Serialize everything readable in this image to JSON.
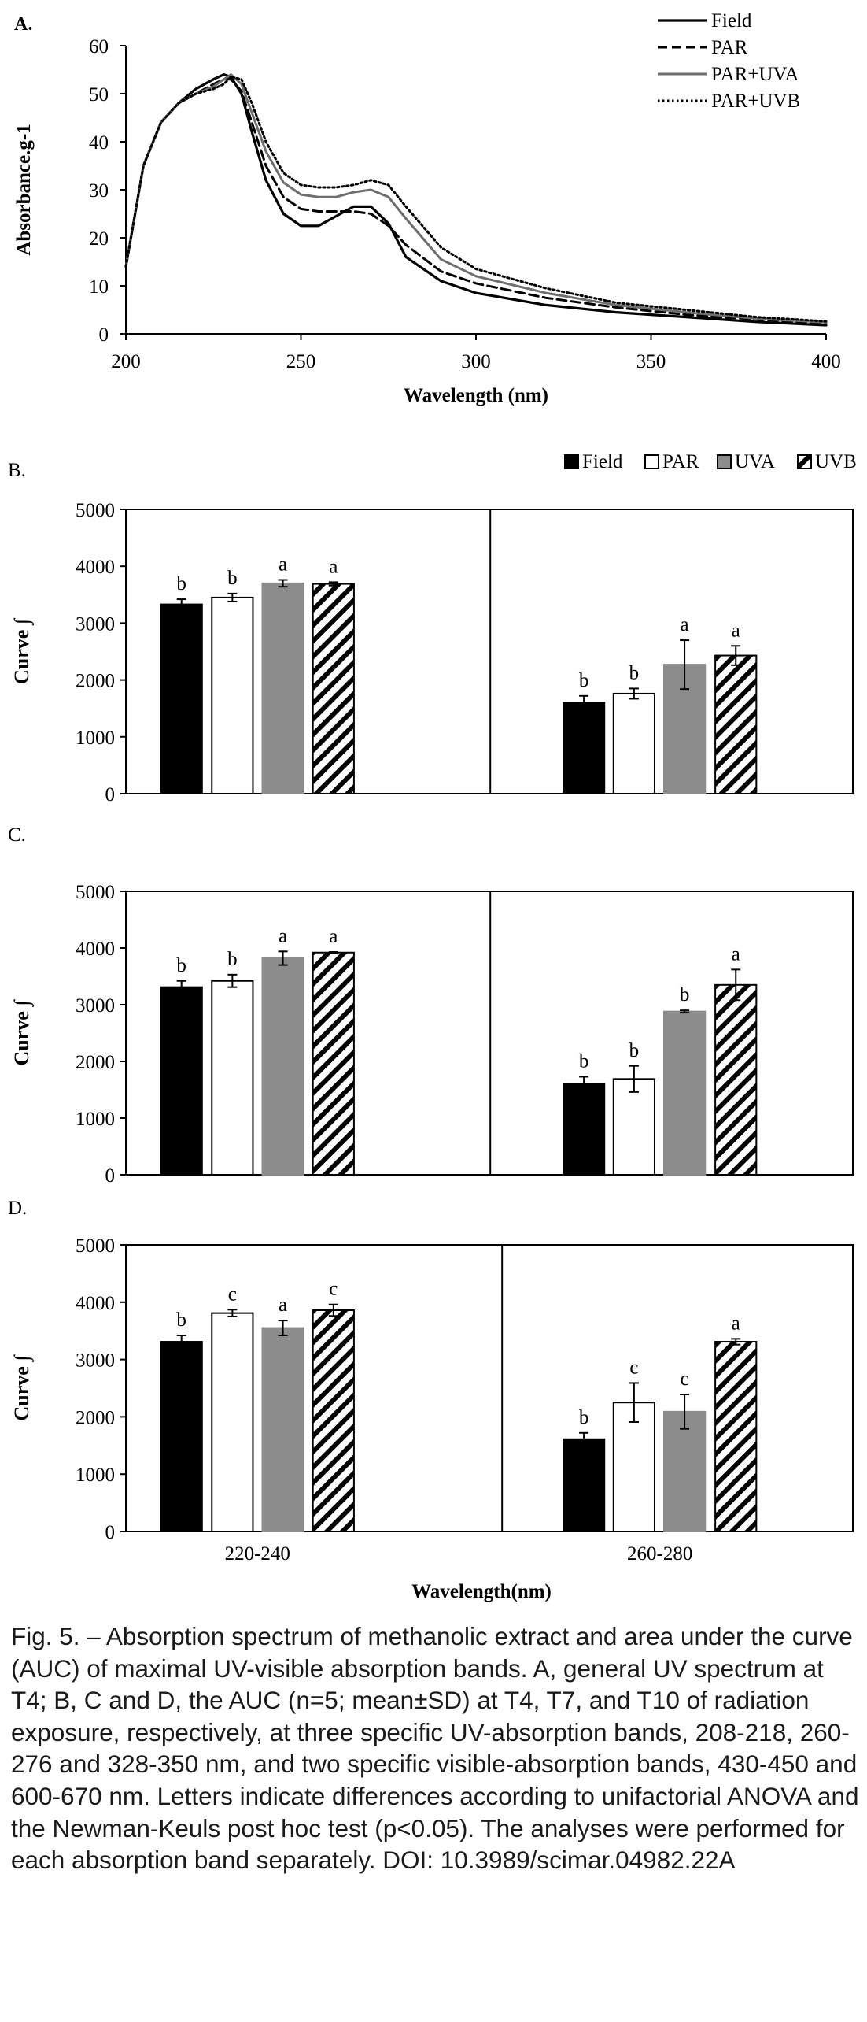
{
  "figure": {
    "caption": "Fig. 5. – Absorption spectrum of methanolic extract and area under the curve (AUC) of maximal UV-visible absorption bands. A, general UV spectrum at T4; B, C and D, the AUC (n=5; mean±SD) at T4, T7, and T10 of radiation exposure, respectively, at three specific UV-absorption bands, 208-218, 260-276 and 328-350 nm, and two specific visible-absorption bands, 430-450 and 600-670 nm. Letters indicate differences according to unifactorial ANOVA and the Newman-Keuls post hoc test (p<0.05). The analyses were performed for each absorption band separately. DOI: 10.3989/scimar.04982.22A"
  },
  "colors": {
    "field": "#000000",
    "par": "#ffffff",
    "uva": "#8c8c8c",
    "uvb_hatch": "#000000",
    "axis": "#000000"
  },
  "chart_data": [
    {
      "panel": "A.",
      "type": "line",
      "xlabel": "Wavelength (nm)",
      "ylabel": "Absorbance.g-1",
      "xlim": [
        200,
        400
      ],
      "ylim": [
        0,
        60
      ],
      "xticks": [
        200,
        250,
        300,
        350,
        400
      ],
      "yticks": [
        0,
        10,
        20,
        30,
        40,
        50,
        60
      ],
      "legend_position": "top-right",
      "series": [
        {
          "name": "Field",
          "style": "solid-black",
          "x": [
            200,
            205,
            210,
            215,
            220,
            225,
            228,
            230,
            233,
            236,
            240,
            245,
            250,
            255,
            260,
            265,
            270,
            275,
            280,
            290,
            300,
            320,
            340,
            360,
            380,
            400
          ],
          "y": [
            14,
            35,
            44,
            48,
            51,
            53,
            54,
            53.5,
            50,
            42,
            32,
            25,
            22.5,
            22.5,
            24.5,
            26.5,
            26.5,
            23,
            16,
            11,
            8.5,
            6,
            4.5,
            3.5,
            2.5,
            1.8
          ]
        },
        {
          "name": "PAR",
          "style": "dashed-black",
          "x": [
            200,
            205,
            210,
            215,
            220,
            225,
            228,
            230,
            233,
            236,
            240,
            245,
            250,
            255,
            260,
            265,
            270,
            275,
            280,
            290,
            300,
            320,
            340,
            360,
            380,
            400
          ],
          "y": [
            14,
            35,
            44,
            48,
            50,
            52,
            53,
            53,
            50.5,
            44,
            35,
            28.5,
            26,
            25.5,
            25.5,
            25.5,
            25,
            22.5,
            18.5,
            13,
            10.5,
            7.5,
            5.5,
            4,
            3,
            2.2
          ]
        },
        {
          "name": "PAR+UVA",
          "style": "solid-gray",
          "x": [
            200,
            205,
            210,
            215,
            220,
            225,
            228,
            230,
            233,
            236,
            240,
            245,
            250,
            255,
            260,
            265,
            270,
            275,
            280,
            290,
            300,
            320,
            340,
            360,
            380,
            400
          ],
          "y": [
            14,
            35,
            44,
            48,
            50,
            51.5,
            53,
            54,
            52,
            46,
            38,
            31.5,
            29,
            28.5,
            28.5,
            29.5,
            30,
            28.5,
            24,
            15.5,
            12,
            8.5,
            6,
            4.5,
            3.2,
            2.4
          ]
        },
        {
          "name": "PAR+UVB",
          "style": "dotted-black",
          "x": [
            200,
            205,
            210,
            215,
            220,
            225,
            228,
            230,
            233,
            236,
            240,
            245,
            250,
            255,
            260,
            265,
            270,
            275,
            280,
            290,
            300,
            320,
            340,
            360,
            380,
            400
          ],
          "y": [
            14,
            35,
            44,
            48,
            50,
            51,
            52,
            53.5,
            53,
            48,
            40,
            33.5,
            31,
            30.5,
            30.5,
            31,
            32,
            31,
            26.5,
            18,
            13.5,
            9.5,
            6.5,
            5,
            3.5,
            2.6
          ]
        }
      ]
    },
    {
      "panel": "B.",
      "type": "bar",
      "ylabel": "Curve ∫",
      "ylim": [
        0,
        5000
      ],
      "yticks": [
        0,
        1000,
        2000,
        3000,
        4000,
        5000
      ],
      "groups": [
        "220-240",
        "260-280"
      ],
      "show_xticklabels": false,
      "legend": [
        "Field",
        "PAR",
        "UVA",
        "UVB"
      ],
      "series": [
        {
          "name": "Field",
          "values": [
            3330,
            1600
          ],
          "sd": [
            90,
            120
          ],
          "letters": [
            "b",
            "b"
          ]
        },
        {
          "name": "PAR",
          "values": [
            3450,
            1760
          ],
          "sd": [
            70,
            90
          ],
          "letters": [
            "b",
            "b"
          ]
        },
        {
          "name": "UVA",
          "values": [
            3700,
            2270
          ],
          "sd": [
            60,
            430
          ],
          "letters": [
            "a",
            "a"
          ]
        },
        {
          "name": "UVB",
          "values": [
            3690,
            2430
          ],
          "sd": [
            30,
            170
          ],
          "letters": [
            "a",
            "a"
          ]
        }
      ]
    },
    {
      "panel": "C.",
      "type": "bar",
      "ylabel": "Curve ∫",
      "ylim": [
        0,
        5000
      ],
      "yticks": [
        0,
        1000,
        2000,
        3000,
        4000,
        5000
      ],
      "groups": [
        "220-240",
        "260-280"
      ],
      "show_xticklabels": false,
      "series": [
        {
          "name": "Field",
          "values": [
            3310,
            1600
          ],
          "sd": [
            110,
            130
          ],
          "letters": [
            "b",
            "b"
          ]
        },
        {
          "name": "PAR",
          "values": [
            3420,
            1690
          ],
          "sd": [
            110,
            230
          ],
          "letters": [
            "b",
            "b"
          ]
        },
        {
          "name": "UVA",
          "values": [
            3820,
            2880
          ],
          "sd": [
            120,
            20
          ],
          "letters": [
            "a",
            "b"
          ]
        },
        {
          "name": "UVB",
          "values": [
            3920,
            3350
          ],
          "sd": [
            10,
            270
          ],
          "letters": [
            "a",
            "a"
          ]
        }
      ]
    },
    {
      "panel": "D.",
      "type": "bar",
      "ylabel": "Curve ∫",
      "xlabel": "Wavelength(nm)",
      "ylim": [
        0,
        5000
      ],
      "yticks": [
        0,
        1000,
        2000,
        3000,
        4000,
        5000
      ],
      "groups": [
        "220-240",
        "260-280"
      ],
      "show_xticklabels": true,
      "series": [
        {
          "name": "Field",
          "values": [
            3310,
            1610
          ],
          "sd": [
            110,
            110
          ],
          "letters": [
            "b",
            "b"
          ]
        },
        {
          "name": "PAR",
          "values": [
            3810,
            2250
          ],
          "sd": [
            60,
            340
          ],
          "letters": [
            "c",
            "c"
          ]
        },
        {
          "name": "UVA",
          "values": [
            3550,
            2090
          ],
          "sd": [
            130,
            300
          ],
          "letters": [
            "a",
            "c"
          ]
        },
        {
          "name": "UVB",
          "values": [
            3860,
            3310
          ],
          "sd": [
            100,
            50
          ],
          "letters": [
            "c",
            "a"
          ]
        }
      ]
    }
  ]
}
